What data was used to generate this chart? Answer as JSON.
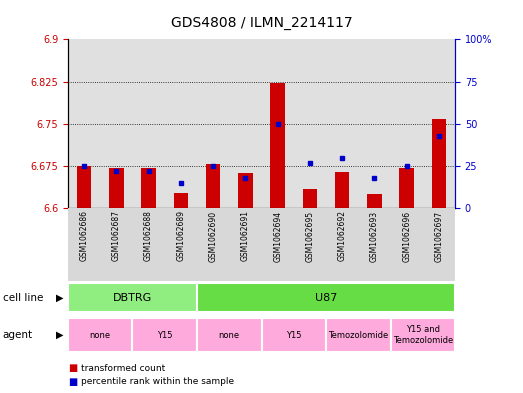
{
  "title": "GDS4808 / ILMN_2214117",
  "samples": [
    "GSM1062686",
    "GSM1062687",
    "GSM1062688",
    "GSM1062689",
    "GSM1062690",
    "GSM1062691",
    "GSM1062694",
    "GSM1062695",
    "GSM1062692",
    "GSM1062693",
    "GSM1062696",
    "GSM1062697"
  ],
  "red_values": [
    6.675,
    6.672,
    6.672,
    6.628,
    6.679,
    6.663,
    6.822,
    6.635,
    6.665,
    6.625,
    6.672,
    6.758
  ],
  "blue_percentiles": [
    25,
    22,
    22,
    15,
    25,
    18,
    50,
    27,
    30,
    18,
    25,
    43
  ],
  "ylim_left": [
    6.6,
    6.9
  ],
  "ylim_right": [
    0,
    100
  ],
  "yticks_left": [
    6.6,
    6.675,
    6.75,
    6.825,
    6.9
  ],
  "yticks_right": [
    0,
    25,
    50,
    75,
    100
  ],
  "ytick_labels_left": [
    "6.6",
    "6.675",
    "6.75",
    "6.825",
    "6.9"
  ],
  "ytick_labels_right": [
    "0",
    "25",
    "50",
    "75",
    "100%"
  ],
  "hlines": [
    6.675,
    6.75,
    6.825
  ],
  "bar_color": "#cc0000",
  "dot_color": "#0000cc",
  "bar_bottom": 6.6,
  "cell_line_groups": [
    {
      "label": "DBTRG",
      "start": 0,
      "end": 3,
      "color": "#90ee80"
    },
    {
      "label": "U87",
      "start": 4,
      "end": 11,
      "color": "#66dd44"
    }
  ],
  "agent_groups": [
    {
      "label": "none",
      "start": 0,
      "end": 1
    },
    {
      "label": "Y15",
      "start": 2,
      "end": 3
    },
    {
      "label": "none",
      "start": 4,
      "end": 5
    },
    {
      "label": "Y15",
      "start": 6,
      "end": 7
    },
    {
      "label": "Temozolomide",
      "start": 8,
      "end": 9
    },
    {
      "label": "Y15 and\nTemozolomide",
      "start": 10,
      "end": 11
    }
  ],
  "agent_color": "#ffaadd",
  "legend_red": "transformed count",
  "legend_blue": "percentile rank within the sample",
  "left_axis_color": "#cc0000",
  "right_axis_color": "#0000cc"
}
